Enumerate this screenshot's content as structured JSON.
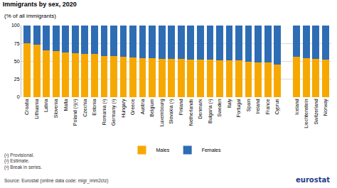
{
  "chart_data": {
    "type": "bar",
    "stacked": true,
    "title": "Immigrants by sex, 2020",
    "subtitle": "(% of all immigrants)",
    "categories": [
      "Croatia",
      "Lithuania",
      "Latvia",
      "Slovenia",
      "Malta",
      "Poland (¹)(²)",
      "Czechia",
      "Estonia",
      "Romania (²)",
      "Germany (³)",
      "Hungary",
      "Greece",
      "Austria",
      "Belgium",
      "Luxembourg",
      "Slovakia (¹)",
      "Finland",
      "Netherlands",
      "Denmark",
      "Bulgaria (¹)",
      "Sweden",
      "Italy",
      "Portugal",
      "Spain",
      "Ireland",
      "France",
      "Cyprus",
      null,
      "Iceland",
      "Liechtenstein",
      "Switzerland",
      "Norway"
    ],
    "series": [
      {
        "name": "Males",
        "color": "#F6A800",
        "values": [
          75,
          73,
          65,
          64,
          62,
          61,
          60,
          60,
          57,
          57,
          56,
          55,
          54,
          54,
          53,
          53,
          53,
          52,
          52,
          52,
          51,
          51,
          51,
          50,
          49,
          49,
          46,
          null,
          56,
          54,
          53,
          52
        ]
      },
      {
        "name": "Females",
        "color": "#2E6DB4",
        "values": [
          25,
          27,
          35,
          36,
          38,
          39,
          40,
          40,
          43,
          43,
          44,
          45,
          46,
          46,
          47,
          47,
          47,
          48,
          48,
          48,
          49,
          49,
          49,
          50,
          51,
          51,
          54,
          null,
          44,
          46,
          47,
          48
        ]
      }
    ],
    "ylim": [
      0,
      100
    ],
    "yticks": [
      0,
      25,
      50,
      75,
      100
    ],
    "grid": true,
    "legend": "bottom",
    "notes": [
      "(¹) Provisional.",
      "(²) Estimate.",
      "(³) Break in series."
    ],
    "source": "Source: Eurostat (online data code: migr_imm2ctz)",
    "logo": "eurostat"
  }
}
